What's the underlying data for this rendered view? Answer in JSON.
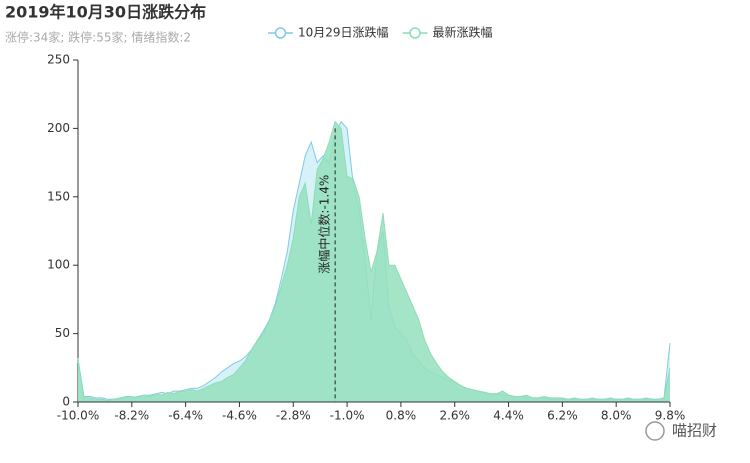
{
  "chart_data": {
    "type": "area",
    "title": "2019年10月30日涨跌分布",
    "subtitle": "涨停:34家; 跌停:55家; 情绪指数:2",
    "watermark": "喵招财",
    "x": [
      -10,
      -9.8,
      -9.6,
      -9.4,
      -9.2,
      -9,
      -8.8,
      -8.6,
      -8.4,
      -8.2,
      -8,
      -7.8,
      -7.6,
      -7.4,
      -7.2,
      -7,
      -6.8,
      -6.6,
      -6.4,
      -6.2,
      -6,
      -5.8,
      -5.6,
      -5.4,
      -5.2,
      -5,
      -4.8,
      -4.6,
      -4.4,
      -4.2,
      -4,
      -3.8,
      -3.6,
      -3.4,
      -3.2,
      -3,
      -2.8,
      -2.6,
      -2.4,
      -2.2,
      -2,
      -1.8,
      -1.6,
      -1.4,
      -1.2,
      -1,
      -0.8,
      -0.6,
      -0.4,
      -0.2,
      0,
      0.2,
      0.4,
      0.6,
      0.8,
      1,
      1.2,
      1.4,
      1.6,
      1.8,
      2,
      2.2,
      2.4,
      2.6,
      2.8,
      3,
      3.2,
      3.4,
      3.6,
      3.8,
      4,
      4.2,
      4.4,
      4.6,
      4.8,
      5,
      5.2,
      5.4,
      5.6,
      5.8,
      6,
      6.2,
      6.4,
      6.6,
      6.8,
      7,
      7.2,
      7.4,
      7.6,
      7.8,
      8,
      8.2,
      8.4,
      8.6,
      8.8,
      9,
      9.2,
      9.4,
      9.6,
      9.8
    ],
    "series": [
      {
        "name": "10月29日涨跌幅",
        "color": "#7ecbe6",
        "fill": "#cdeef7",
        "values": [
          30,
          4,
          4,
          3,
          3,
          2,
          2,
          2,
          3,
          3,
          4,
          5,
          5,
          6,
          7,
          6,
          8,
          8,
          9,
          10,
          10,
          12,
          15,
          18,
          22,
          25,
          28,
          30,
          33,
          38,
          45,
          52,
          60,
          72,
          90,
          110,
          140,
          160,
          180,
          190,
          175,
          180,
          175,
          195,
          205,
          200,
          160,
          140,
          105,
          60,
          110,
          125,
          70,
          55,
          50,
          45,
          35,
          30,
          25,
          22,
          20,
          18,
          16,
          14,
          12,
          10,
          9,
          8,
          7,
          6,
          6,
          5,
          5,
          4,
          4,
          3,
          3,
          3,
          3,
          2,
          2,
          2,
          2,
          2,
          2,
          2,
          2,
          2,
          2,
          2,
          2,
          2,
          2,
          2,
          2,
          2,
          2,
          2,
          3,
          43
        ]
      },
      {
        "name": "最新涨跌幅",
        "color": "#8edcb6",
        "fill": "#95e0bd",
        "values": [
          32,
          3,
          3,
          2,
          2,
          1,
          2,
          3,
          4,
          4,
          3,
          5,
          4,
          6,
          5,
          7,
          6,
          8,
          8,
          9,
          8,
          10,
          12,
          14,
          15,
          18,
          20,
          25,
          30,
          38,
          45,
          50,
          60,
          70,
          85,
          100,
          120,
          150,
          160,
          130,
          170,
          178,
          190,
          205,
          200,
          165,
          163,
          150,
          120,
          95,
          110,
          138,
          100,
          100,
          90,
          80,
          70,
          60,
          45,
          35,
          28,
          22,
          18,
          15,
          12,
          10,
          9,
          8,
          7,
          6,
          6,
          8,
          5,
          4,
          4,
          5,
          3,
          3,
          4,
          3,
          3,
          3,
          2,
          3,
          2,
          2,
          3,
          2,
          2,
          3,
          2,
          2,
          3,
          2,
          2,
          3,
          2,
          2,
          3,
          25
        ]
      }
    ],
    "median": {
      "value": -1.4,
      "label": "涨幅中位数:-1.4%"
    },
    "xlim": [
      -10,
      9.8
    ],
    "xticks": [
      {
        "value": -10,
        "label": "-10.0%"
      },
      {
        "value": -8.2,
        "label": "-8.2%"
      },
      {
        "value": -6.4,
        "label": "-6.4%"
      },
      {
        "value": -4.6,
        "label": "-4.6%"
      },
      {
        "value": -2.8,
        "label": "-2.8%"
      },
      {
        "value": -1,
        "label": "-1.0%"
      },
      {
        "value": 0.8,
        "label": "0.8%"
      },
      {
        "value": 2.6,
        "label": "2.6%"
      },
      {
        "value": 4.4,
        "label": "4.4%"
      },
      {
        "value": 6.2,
        "label": "6.2%"
      },
      {
        "value": 8,
        "label": "8.0%"
      },
      {
        "value": 9.8,
        "label": "9.8%"
      }
    ],
    "ylim": [
      0,
      250
    ],
    "yticks": [
      0,
      50,
      100,
      150,
      200,
      250
    ],
    "grid": false
  }
}
